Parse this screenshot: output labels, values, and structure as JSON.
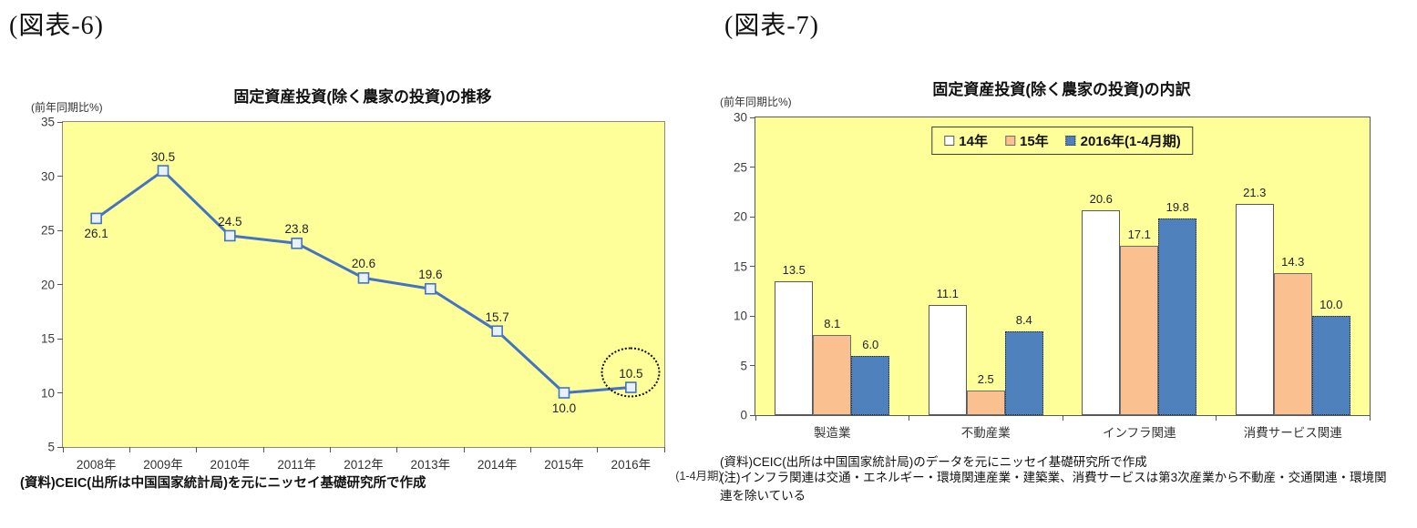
{
  "figure6": {
    "label": "(図表-6)",
    "title": "固定資産投資(除く農家の投資)の推移",
    "unit_label": "(前年同期比%)",
    "source": "(資料)CEIC(出所は中国国家統計局)を元にニッセイ基礎研究所で作成",
    "chart_data": {
      "type": "line",
      "categories": [
        "2008年",
        "2009年",
        "2010年",
        "2011年",
        "2012年",
        "2013年",
        "2014年",
        "2015年",
        "2016年"
      ],
      "last_category_note": "(1-4月期)",
      "values": [
        26.1,
        30.5,
        24.5,
        23.8,
        20.6,
        19.6,
        15.7,
        10.0,
        10.5
      ],
      "ylim": [
        5,
        35
      ],
      "yticks": [
        35,
        30,
        25,
        20,
        15,
        10,
        5
      ],
      "grid": false,
      "label_positions": [
        "below",
        "above",
        "above",
        "above",
        "above",
        "above",
        "above",
        "below",
        "above"
      ],
      "annotation": "dotted-circle-around-last-point",
      "line_color": "#4472c4",
      "marker_fill": "#e9f1fb",
      "marker_border": "#4472c4",
      "plot_bg": "#ffff99"
    }
  },
  "figure7": {
    "label": "(図表-7)",
    "title": "固定資産投資(除く農家の投資)の内訳",
    "unit_label": "(前年同期比%)",
    "source": "(資料)CEIC(出所は中国国家統計局)のデータを元にニッセイ基礎研究所で作成",
    "note": "(注)インフラ関連は交通・エネルギー・環境関連産業・建築業、消費サービスは第3次産業から不動産・交通関連・環境関連を除いている",
    "chart_data": {
      "type": "bar",
      "categories": [
        "製造業",
        "不動産業",
        "インフラ関連",
        "消費サービス関連"
      ],
      "series": [
        {
          "name": "14年",
          "color": "#ffffff",
          "border_color": "#595959",
          "border_style": "solid",
          "values": [
            13.5,
            11.1,
            20.6,
            21.3
          ]
        },
        {
          "name": "15年",
          "color": "#fac090",
          "border_color": "#6e6e6e",
          "border_style": "solid",
          "values": [
            8.1,
            2.5,
            17.1,
            14.3
          ]
        },
        {
          "name": "2016年(1-4月期)",
          "color": "#4f81bd",
          "border_color": "#262626",
          "border_style": "dotted",
          "values": [
            6.0,
            8.4,
            19.8,
            10.0
          ]
        }
      ],
      "ylim": [
        0,
        30
      ],
      "yticks": [
        30,
        25,
        20,
        15,
        10,
        5,
        0
      ],
      "grid": false,
      "legend_position": "top-center-inside",
      "plot_bg": "#ffff99"
    }
  }
}
